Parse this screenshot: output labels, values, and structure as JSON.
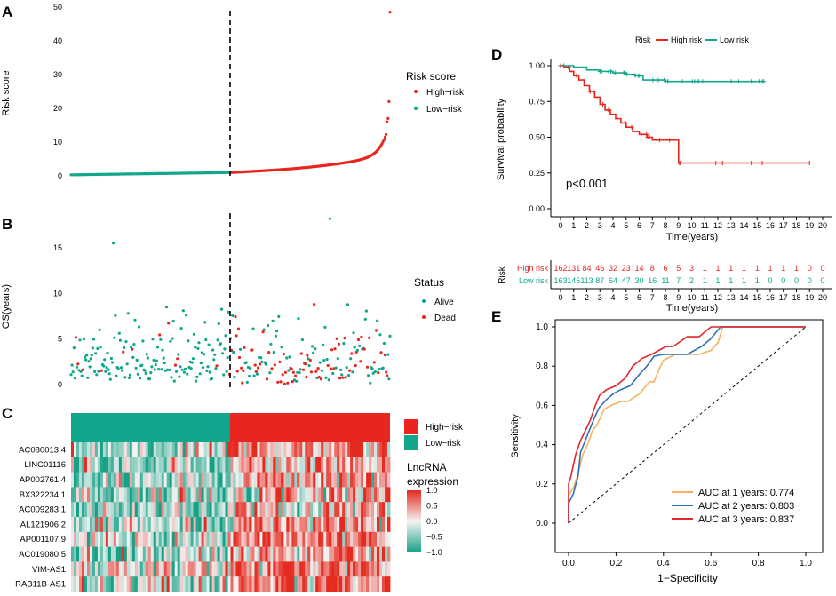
{
  "panels": {
    "A": "A",
    "B": "B",
    "C": "C",
    "D": "D",
    "E": "E"
  },
  "colors": {
    "high": "#e8251f",
    "low": "#12a68c",
    "orange": "#f4b35e",
    "blue": "#2f72b8",
    "red": "#e3262a",
    "hm_low": "#16a085",
    "hm_mid": "#f4f4f4",
    "hm_high": "#e52a20"
  },
  "chart_data": [
    {
      "id": "A",
      "type": "scatter",
      "ylabel": "Risk score",
      "xlabel": "",
      "y_ticks": [
        "0",
        "10",
        "20",
        "30",
        "40",
        "50"
      ],
      "ylim": [
        0,
        50
      ],
      "n_low": 163,
      "n_high": 162,
      "legend": {
        "title": "Risk score",
        "items": [
          "High−risk",
          "Low−risk"
        ]
      },
      "cutoff_index": 163
    },
    {
      "id": "B",
      "type": "scatter",
      "ylabel": "OS(years)",
      "y_ticks": [
        "0",
        "5",
        "10",
        "15"
      ],
      "ylim": [
        0,
        18.5
      ],
      "legend": {
        "title": "Status",
        "items": [
          "Alive",
          "Dead"
        ]
      }
    },
    {
      "id": "C",
      "type": "heatmap",
      "rows": [
        "AC080013.4",
        "LINC01116",
        "AP002761.4",
        "BX322234.1",
        "AC009283.1",
        "AL121906.2",
        "AP001107.9",
        "AC019080.5",
        "VIM-AS1",
        "RAB11B-AS1"
      ],
      "row_bias": [
        0.25,
        -0.25,
        0.15,
        0.1,
        -0.15,
        0.2,
        0.35,
        0.1,
        0.6,
        0.55
      ],
      "annotation_legend": [
        "High−risk",
        "Low−risk"
      ],
      "color_legend": {
        "title": [
          "LncRNA",
          "expression"
        ],
        "ticks": [
          "1.0",
          "0.5",
          "0.0",
          "−0.5",
          "−1.0"
        ],
        "values": [
          1,
          0.5,
          0,
          -0.5,
          -1
        ]
      }
    },
    {
      "id": "D",
      "type": "line",
      "ylabel": "Survival probability",
      "xlabel": "Time(years)",
      "y_ticks": [
        "0.00",
        "0.25",
        "0.50",
        "0.75",
        "1.00"
      ],
      "ylim": [
        0,
        1
      ],
      "x": [
        0,
        1,
        2,
        3,
        4,
        5,
        6,
        7,
        8,
        9,
        10,
        11,
        12,
        13,
        14,
        15,
        16,
        17,
        18,
        19,
        20
      ],
      "legend": {
        "title": "Risk",
        "items": [
          "High risk",
          "Low risk"
        ]
      },
      "pvalue": "p<0.001",
      "series": [
        {
          "name": "High risk",
          "points": [
            [
              0,
              1
            ],
            [
              0.3,
              0.99
            ],
            [
              0.7,
              0.96
            ],
            [
              1,
              0.93
            ],
            [
              1.4,
              0.9
            ],
            [
              1.8,
              0.86
            ],
            [
              2.2,
              0.82
            ],
            [
              2.6,
              0.78
            ],
            [
              3,
              0.73
            ],
            [
              3.4,
              0.69
            ],
            [
              3.8,
              0.66
            ],
            [
              4.2,
              0.63
            ],
            [
              4.6,
              0.6
            ],
            [
              5,
              0.57
            ],
            [
              5.5,
              0.54
            ],
            [
              6,
              0.52
            ],
            [
              6.6,
              0.5
            ],
            [
              7,
              0.48
            ],
            [
              8.5,
              0.48
            ],
            [
              9,
              0.32
            ],
            [
              19,
              0.32
            ]
          ]
        },
        {
          "name": "Low risk",
          "points": [
            [
              0,
              1
            ],
            [
              1,
              0.99
            ],
            [
              2,
              0.97
            ],
            [
              3,
              0.96
            ],
            [
              4,
              0.95
            ],
            [
              5,
              0.94
            ],
            [
              5.7,
              0.93
            ],
            [
              6.3,
              0.9
            ],
            [
              8,
              0.89
            ],
            [
              15.5,
              0.89
            ]
          ]
        }
      ],
      "risk_table": {
        "title": "Risk",
        "rows": [
          {
            "name": "High risk",
            "counts": [
              "162",
              "131",
              "84",
              "46",
              "32",
              "23",
              "14",
              "8",
              "6",
              "5",
              "3",
              "1",
              "1",
              "1",
              "1",
              "1",
              "1",
              "1",
              "1",
              "0",
              "0"
            ]
          },
          {
            "name": "Low risk",
            "counts": [
              "163",
              "145",
              "113",
              "87",
              "64",
              "47",
              "30",
              "16",
              "11",
              "7",
              "2",
              "1",
              "1",
              "1",
              "1",
              "1",
              "0",
              "0",
              "0",
              "0",
              "0"
            ]
          }
        ]
      }
    },
    {
      "id": "E",
      "type": "line",
      "ylabel": "Sensitivity",
      "xlabel": "1−Specificity",
      "x_ticks": [
        "0.0",
        "0.2",
        "0.4",
        "0.6",
        "0.8",
        "1.0"
      ],
      "y_ticks": [
        "0.0",
        "0.2",
        "0.4",
        "0.6",
        "0.8",
        "1.0"
      ],
      "xlim": [
        0,
        1
      ],
      "ylim": [
        0,
        1
      ],
      "series": [
        {
          "name": "AUC at 1 years: 0.774",
          "points": [
            [
              0,
              0
            ],
            [
              0,
              0.14
            ],
            [
              0.02,
              0.18
            ],
            [
              0.04,
              0.25
            ],
            [
              0.06,
              0.35
            ],
            [
              0.08,
              0.4
            ],
            [
              0.1,
              0.47
            ],
            [
              0.12,
              0.5
            ],
            [
              0.15,
              0.58
            ],
            [
              0.18,
              0.6
            ],
            [
              0.22,
              0.62
            ],
            [
              0.25,
              0.62
            ],
            [
              0.3,
              0.66
            ],
            [
              0.34,
              0.72
            ],
            [
              0.36,
              0.72
            ],
            [
              0.38,
              0.78
            ],
            [
              0.4,
              0.83
            ],
            [
              0.45,
              0.86
            ],
            [
              0.55,
              0.86
            ],
            [
              0.6,
              0.88
            ],
            [
              0.63,
              0.92
            ],
            [
              0.65,
              1
            ],
            [
              1,
              1
            ]
          ]
        },
        {
          "name": "AUC at 2 years: 0.803",
          "points": [
            [
              0,
              0
            ],
            [
              0,
              0.1
            ],
            [
              0.02,
              0.15
            ],
            [
              0.04,
              0.24
            ],
            [
              0.05,
              0.36
            ],
            [
              0.07,
              0.42
            ],
            [
              0.09,
              0.48
            ],
            [
              0.11,
              0.54
            ],
            [
              0.13,
              0.59
            ],
            [
              0.16,
              0.63
            ],
            [
              0.19,
              0.66
            ],
            [
              0.22,
              0.68
            ],
            [
              0.26,
              0.7
            ],
            [
              0.3,
              0.76
            ],
            [
              0.33,
              0.8
            ],
            [
              0.36,
              0.85
            ],
            [
              0.4,
              0.86
            ],
            [
              0.5,
              0.86
            ],
            [
              0.56,
              0.9
            ],
            [
              0.6,
              0.94
            ],
            [
              0.64,
              1
            ],
            [
              1,
              1
            ]
          ]
        },
        {
          "name": "AUC at 3 years: 0.837",
          "points": [
            [
              0,
              0
            ],
            [
              0,
              0.2
            ],
            [
              0.01,
              0.24
            ],
            [
              0.03,
              0.35
            ],
            [
              0.05,
              0.42
            ],
            [
              0.07,
              0.47
            ],
            [
              0.09,
              0.52
            ],
            [
              0.11,
              0.59
            ],
            [
              0.13,
              0.65
            ],
            [
              0.16,
              0.68
            ],
            [
              0.2,
              0.7
            ],
            [
              0.24,
              0.74
            ],
            [
              0.27,
              0.8
            ],
            [
              0.31,
              0.84
            ],
            [
              0.35,
              0.86
            ],
            [
              0.38,
              0.88
            ],
            [
              0.41,
              0.9
            ],
            [
              0.44,
              0.9
            ],
            [
              0.5,
              0.95
            ],
            [
              0.55,
              0.95
            ],
            [
              0.6,
              1
            ],
            [
              1,
              1
            ]
          ]
        }
      ]
    }
  ]
}
